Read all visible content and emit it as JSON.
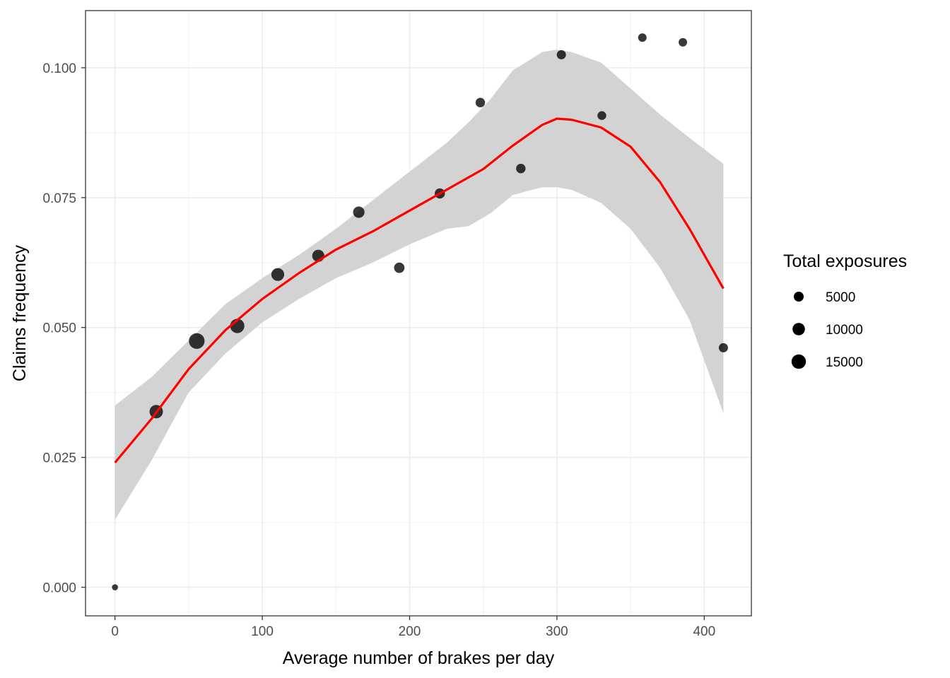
{
  "chart_data": {
    "type": "scatter",
    "xlabel": "Average number of brakes per day",
    "ylabel": "Claims frequency",
    "xlim": [
      -20,
      432
    ],
    "ylim": [
      -0.0055,
      0.111
    ],
    "x_ticks": [
      0,
      100,
      200,
      300,
      400
    ],
    "x_tick_labels": [
      "0",
      "100",
      "200",
      "300",
      "400"
    ],
    "y_ticks": [
      0,
      0.025,
      0.05,
      0.075,
      0.1
    ],
    "y_tick_labels": [
      "0.000",
      "0.025",
      "0.050",
      "0.075",
      "0.100"
    ],
    "grid": true,
    "legend_position": "right",
    "colors": {
      "points": "#000000",
      "smooth_line": "#ff0000",
      "confidence_band": "#d3d3d3",
      "grid_major": "#ebebeb",
      "panel_border": "#333333"
    },
    "points": [
      {
        "x": 0,
        "y": 0.0,
        "exposure": 800
      },
      {
        "x": 28,
        "y": 0.0338,
        "exposure": 12500
      },
      {
        "x": 55.5,
        "y": 0.0474,
        "exposure": 18500
      },
      {
        "x": 83,
        "y": 0.0503,
        "exposure": 14500
      },
      {
        "x": 110.5,
        "y": 0.0602,
        "exposure": 11000
      },
      {
        "x": 138,
        "y": 0.0638,
        "exposure": 9500
      },
      {
        "x": 165.5,
        "y": 0.0722,
        "exposure": 8000
      },
      {
        "x": 193,
        "y": 0.0615,
        "exposure": 6000
      },
      {
        "x": 220.5,
        "y": 0.0758,
        "exposure": 5500
      },
      {
        "x": 248,
        "y": 0.0933,
        "exposure": 4500
      },
      {
        "x": 275.5,
        "y": 0.0806,
        "exposure": 4500
      },
      {
        "x": 303,
        "y": 0.1025,
        "exposure": 4000
      },
      {
        "x": 330.5,
        "y": 0.0908,
        "exposure": 3500
      },
      {
        "x": 358,
        "y": 0.1058,
        "exposure": 3000
      },
      {
        "x": 385.5,
        "y": 0.1049,
        "exposure": 3000
      },
      {
        "x": 413,
        "y": 0.0461,
        "exposure": 4000
      }
    ],
    "smooth_line": {
      "x": [
        0,
        25,
        50,
        75,
        100,
        125,
        150,
        175,
        200,
        225,
        250,
        270,
        290,
        300,
        310,
        330,
        350,
        370,
        390,
        413
      ],
      "y": [
        0.024,
        0.0325,
        0.042,
        0.0495,
        0.0555,
        0.0605,
        0.065,
        0.0685,
        0.0725,
        0.0765,
        0.0805,
        0.085,
        0.089,
        0.0902,
        0.09,
        0.0885,
        0.0848,
        0.078,
        0.069,
        0.0575
      ]
    },
    "confidence_band": {
      "x": [
        0,
        25,
        50,
        75,
        100,
        125,
        150,
        175,
        200,
        225,
        240,
        255,
        270,
        290,
        300,
        310,
        330,
        350,
        370,
        390,
        413
      ],
      "upper": [
        0.035,
        0.0405,
        0.0475,
        0.0545,
        0.0595,
        0.064,
        0.069,
        0.0745,
        0.08,
        0.0855,
        0.0895,
        0.094,
        0.0995,
        0.103,
        0.1035,
        0.103,
        0.101,
        0.096,
        0.091,
        0.0865,
        0.0815
      ],
      "lower": [
        0.013,
        0.0245,
        0.0375,
        0.045,
        0.051,
        0.0555,
        0.0595,
        0.0625,
        0.066,
        0.069,
        0.0695,
        0.072,
        0.0755,
        0.077,
        0.077,
        0.0765,
        0.074,
        0.069,
        0.0615,
        0.0515,
        0.0335
      ]
    },
    "legend": {
      "title": "Total exposures",
      "entries": [
        {
          "label": "5000",
          "value": 5000
        },
        {
          "label": "10000",
          "value": 10000
        },
        {
          "label": "15000",
          "value": 15000
        }
      ]
    }
  }
}
